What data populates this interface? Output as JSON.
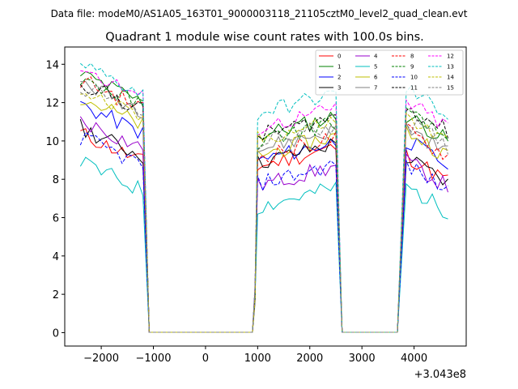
{
  "chart_data": {
    "type": "line",
    "suptitle": "Data file: modeM0/AS1A05_163T01_9000003118_21105cztM0_level2_quad_clean.evt",
    "title": "Quadrant 1 module wise count rates with 100.0s bins.",
    "xlabel": "",
    "ylabel": "",
    "x_offset_label": "+3.043e8",
    "xlim": [
      -2700,
      5000
    ],
    "ylim": [
      -0.7,
      14.9
    ],
    "x_ticks": [
      -2000,
      -1000,
      0,
      1000,
      2000,
      3000,
      4000
    ],
    "x_tick_labels": [
      "−2000",
      "−1000",
      "0",
      "1000",
      "2000",
      "3000",
      "4000"
    ],
    "y_ticks": [
      0,
      2,
      4,
      6,
      8,
      10,
      12,
      14
    ],
    "y_tick_labels": [
      "0",
      "2",
      "4",
      "6",
      "8",
      "10",
      "12",
      "14"
    ],
    "segments": [
      [
        -2400,
        -1200
      ],
      [
        900,
        2550
      ],
      [
        3700,
        4650
      ]
    ],
    "drop_to_zero": [
      -1080,
      1000,
      2620,
      3700
    ],
    "zero_line": [
      -1080,
      3700
    ],
    "series": [
      {
        "name": "0",
        "color": "#ff0000",
        "dash": "solid",
        "levels": [
          9.5,
          8.6,
          8.5
        ]
      },
      {
        "name": "1",
        "color": "#008000",
        "dash": "solid",
        "levels": [
          12.6,
          10.2,
          10.6
        ]
      },
      {
        "name": "2",
        "color": "#0000ff",
        "dash": "solid",
        "levels": [
          11.0,
          8.9,
          9.3
        ]
      },
      {
        "name": "3",
        "color": "#000000",
        "dash": "solid",
        "levels": [
          9.8,
          8.8,
          8.4
        ]
      },
      {
        "name": "4",
        "color": "#9900cc",
        "dash": "solid",
        "levels": [
          10.2,
          7.6,
          8.2
        ]
      },
      {
        "name": "5",
        "color": "#00bfbf",
        "dash": "solid",
        "levels": [
          8.0,
          6.5,
          6.9
        ]
      },
      {
        "name": "6",
        "color": "#bfbf00",
        "dash": "solid",
        "levels": [
          11.4,
          9.2,
          9.8
        ]
      },
      {
        "name": "7",
        "color": "#808080",
        "dash": "solid",
        "levels": [
          12.2,
          9.5,
          10.0
        ]
      },
      {
        "name": "8",
        "color": "#ff0000",
        "dash": "dashed",
        "levels": [
          12.3,
          9.1,
          9.8
        ]
      },
      {
        "name": "9",
        "color": "#008000",
        "dash": "dashed",
        "levels": [
          12.4,
          9.9,
          10.7
        ]
      },
      {
        "name": "10",
        "color": "#0000ff",
        "dash": "dashed",
        "levels": [
          9.3,
          7.7,
          8.0
        ]
      },
      {
        "name": "11",
        "color": "#000000",
        "dash": "dashed",
        "levels": [
          12.2,
          10.2,
          11.1
        ]
      },
      {
        "name": "12",
        "color": "#ff00ff",
        "dash": "dashed",
        "levels": [
          12.9,
          10.6,
          11.3
        ]
      },
      {
        "name": "13",
        "color": "#00bfbf",
        "dash": "dashed",
        "levels": [
          13.1,
          11.4,
          12.0
        ]
      },
      {
        "name": "14",
        "color": "#bfbf00",
        "dash": "dashed",
        "levels": [
          11.7,
          10.0,
          10.5
        ]
      },
      {
        "name": "15",
        "color": "#808080",
        "dash": "dashed",
        "levels": [
          12.0,
          9.8,
          10.3
        ]
      }
    ]
  }
}
